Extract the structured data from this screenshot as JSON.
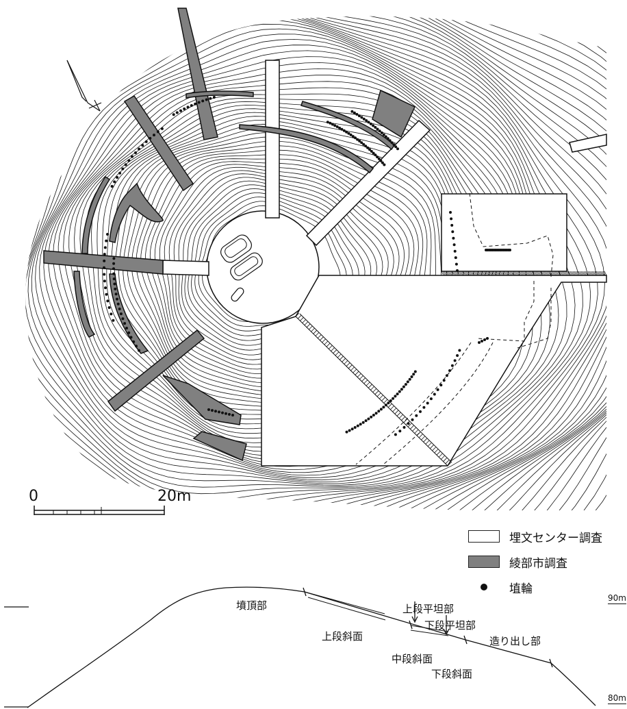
{
  "legend": {
    "center_survey": "埋文センター調査",
    "city_survey": "綾部市調査",
    "haniwa": "埴輪",
    "colors": {
      "center": "#ffffff",
      "city": "#808080",
      "haniwa": "#111111"
    }
  },
  "scale_bar": {
    "start": "0",
    "end": "20m"
  },
  "profile": {
    "summit": "墳頂部",
    "upper_terrace": "上段平坦部",
    "lower_terrace": "下段平坦部",
    "upper_slope": "上段斜面",
    "middle_slope": "中段斜面",
    "lower_slope": "下段斜面",
    "projection": "造り出し部",
    "elev_90": "90m",
    "elev_80": "80m"
  },
  "icons": {
    "north_arrow": "north-arrow-icon"
  }
}
